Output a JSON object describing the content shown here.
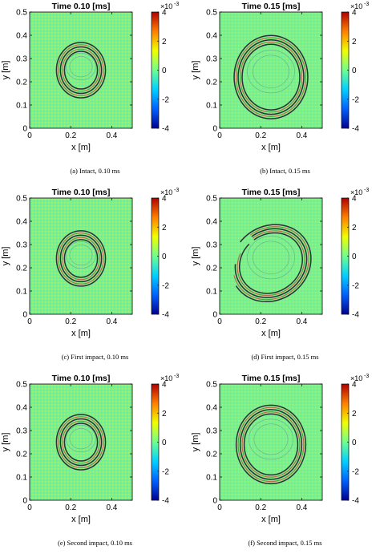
{
  "figure": {
    "colormap": [
      "#00008f",
      "#0060ff",
      "#00d0ff",
      "#70ff90",
      "#f0ff00",
      "#ff8000",
      "#b00000"
    ],
    "wave_color": "#241830",
    "background_level": 0.0
  },
  "chart_data": [
    {
      "type": "heatmap",
      "title": "Time 0.10 [ms]",
      "caption": "(a) Intact, 0.10 ms",
      "xlabel": "x [m]",
      "ylabel": "y [m]",
      "xlim": [
        0,
        0.5
      ],
      "ylim": [
        0,
        0.5
      ],
      "xticks": [
        "0",
        "0.2",
        "0.4"
      ],
      "yticks": [
        "0",
        "0.1",
        "0.2",
        "0.3",
        "0.4",
        "0.5"
      ],
      "colorbar": {
        "min": -4,
        "max": 4,
        "ticks": [
          "4",
          "2",
          "0",
          "-2",
          "-4"
        ],
        "exponent_label": "×10",
        "exponent": "-3"
      },
      "wavefront": {
        "cx": 0.25,
        "cy": 0.25,
        "radius": 0.1,
        "gap": "none"
      }
    },
    {
      "type": "heatmap",
      "title": "Time 0.15 [ms]",
      "caption": "(b) Intact, 0.15 ms",
      "xlabel": "x [m]",
      "ylabel": "y [m]",
      "xlim": [
        0,
        0.5
      ],
      "ylim": [
        0,
        0.5
      ],
      "xticks": [
        "0",
        "0.2",
        "0.4"
      ],
      "yticks": [
        "0",
        "0.1",
        "0.2",
        "0.3",
        "0.4",
        "0.5"
      ],
      "colorbar": {
        "min": -4,
        "max": 4,
        "ticks": [
          "4",
          "2",
          "0",
          "-2",
          "-4"
        ],
        "exponent_label": "×10",
        "exponent": "-3"
      },
      "wavefront": {
        "cx": 0.25,
        "cy": 0.22,
        "radius": 0.16,
        "gap": "none"
      }
    },
    {
      "type": "heatmap",
      "title": "Time 0.10 [ms]",
      "caption": "(c) First impact, 0.10 ms",
      "xlabel": "x [m]",
      "ylabel": "y [m]",
      "xlim": [
        0,
        0.5
      ],
      "ylim": [
        0,
        0.5
      ],
      "xticks": [
        "0",
        "0.2",
        "0.4"
      ],
      "yticks": [
        "0",
        "0.1",
        "0.2",
        "0.3",
        "0.4",
        "0.5"
      ],
      "colorbar": {
        "min": -4,
        "max": 4,
        "ticks": [
          "4",
          "2",
          "0",
          "-2",
          "-4"
        ],
        "exponent_label": "×10",
        "exponent": "-3"
      },
      "wavefront": {
        "cx": 0.25,
        "cy": 0.24,
        "radius": 0.1,
        "gap": "none"
      }
    },
    {
      "type": "heatmap",
      "title": "Time 0.15 [ms]",
      "caption": "(d) First impact, 0.15 ms",
      "xlabel": "x [m]",
      "ylabel": "y [m]",
      "xlim": [
        0,
        0.5
      ],
      "ylim": [
        0,
        0.5
      ],
      "xticks": [
        "0",
        "0.2",
        "0.4"
      ],
      "yticks": [
        "0",
        "0.1",
        "0.2",
        "0.3",
        "0.4",
        "0.5"
      ],
      "colorbar": {
        "min": -4,
        "max": 4,
        "ticks": [
          "4",
          "2",
          "0",
          "-2",
          "-4"
        ],
        "exponent_label": "×10",
        "exponent": "-3"
      },
      "wavefront": {
        "cx": 0.25,
        "cy": 0.22,
        "radius": 0.16,
        "gap": "top"
      }
    },
    {
      "type": "heatmap",
      "title": "Time 0.10 [ms]",
      "caption": "(e) Second impact, 0.10 ms",
      "xlabel": "x [m]",
      "ylabel": "y [m]",
      "xlim": [
        0,
        0.5
      ],
      "ylim": [
        0,
        0.5
      ],
      "xticks": [
        "0",
        "0.2",
        "0.4"
      ],
      "yticks": [
        "0",
        "0.1",
        "0.2",
        "0.3",
        "0.4",
        "0.5"
      ],
      "colorbar": {
        "min": -4,
        "max": 4,
        "ticks": [
          "4",
          "2",
          "0",
          "-2",
          "-4"
        ],
        "exponent_label": "×10",
        "exponent": "-3"
      },
      "wavefront": {
        "cx": 0.25,
        "cy": 0.25,
        "radius": 0.1,
        "gap": "none"
      }
    },
    {
      "type": "heatmap",
      "title": "Time 0.15 [ms]",
      "caption": "(f) Second impact, 0.15 ms",
      "xlabel": "x [m]",
      "ylabel": "y [m]",
      "xlim": [
        0,
        0.5
      ],
      "ylim": [
        0,
        0.5
      ],
      "xticks": [
        "0",
        "0.2",
        "0.4"
      ],
      "yticks": [
        "0",
        "0.1",
        "0.2",
        "0.3",
        "0.4",
        "0.5"
      ],
      "colorbar": {
        "min": -4,
        "max": 4,
        "ticks": [
          "4",
          "2",
          "0",
          "-2",
          "-4"
        ],
        "exponent_label": "×10",
        "exponent": "-3"
      },
      "wavefront": {
        "cx": 0.25,
        "cy": 0.24,
        "radius": 0.15,
        "gap": "none"
      }
    }
  ]
}
